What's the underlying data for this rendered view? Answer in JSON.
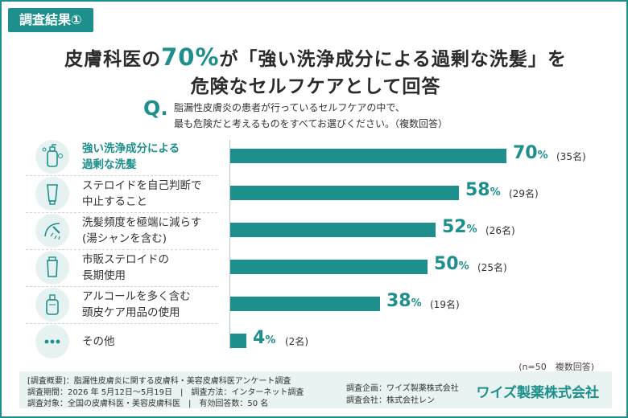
{
  "tag": "調査結果①",
  "headline": {
    "line1_before": "皮膚科医の",
    "line1_accent": "70%",
    "line1_after": "が「強い洗浄成分による過剰な洗髪」を",
    "line2": "危険なセルフケアとして回答"
  },
  "question": {
    "mark": "Q.",
    "line1": "脂漏性皮膚炎の患者が行っているセルフケアの中で、",
    "line2": "最も危険だと考えるものをすべてお選びください。（複数回答）"
  },
  "chart_data": {
    "type": "bar",
    "orientation": "horizontal",
    "categories": [
      [
        "強い洗浄成分による",
        "過剰な洗髪"
      ],
      [
        "ステロイドを自己判断で",
        "中止すること"
      ],
      [
        "洗髪頻度を極端に減らす",
        "(湯シャンを含む)"
      ],
      [
        "市販ステロイドの",
        "長期使用"
      ],
      [
        "アルコールを多く含む",
        "頭皮ケア用品の使用"
      ],
      [
        "その他"
      ]
    ],
    "values": [
      70,
      58,
      52,
      50,
      38,
      4
    ],
    "value_unit": "%",
    "counts": [
      "(35名)",
      "(29名)",
      "(26名)",
      "(25名)",
      "(19名)",
      "(2名)"
    ],
    "icons": [
      "pump-bottle-icon",
      "tube-icon",
      "shower-icon",
      "cream-tube-icon",
      "lotion-bottle-icon",
      "more-dots-icon"
    ],
    "xlim": [
      0,
      100
    ],
    "grid": false,
    "bar_color": "#1d8f8c",
    "note": "(n=50　複数回答)"
  },
  "footer": {
    "overview": "[調査概要]：脂漏性皮膚炎に関する皮膚科・美容皮膚科医アンケート調査",
    "period": "調査期間：2026 年 5月12日〜5月19日　|　調査方法：インターネット調査",
    "target": "調査対象：全国の皮膚科医・美容皮膚科医　|　有効回答数：50 名",
    "planner": "調査企画：ワイズ製薬株式会社",
    "company": "調査会社：株式会社レン",
    "brand": "ワイズ製薬株式会社"
  },
  "colors": {
    "accent": "#1d8f8c",
    "footer_bg": "#e8f3f2",
    "icon_bg": "#e6f2f2"
  }
}
